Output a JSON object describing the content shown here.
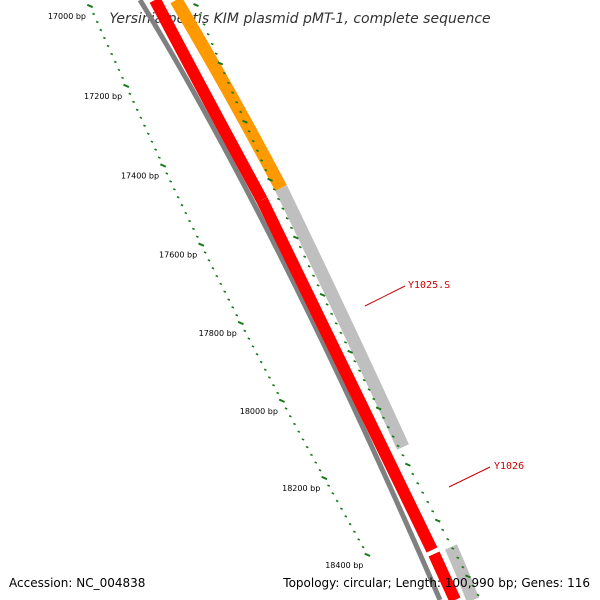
{
  "title": "Yersinia pestis KIM plasmid pMT-1, complete sequence",
  "accession": "Accession: NC_004838",
  "summary": "Topology: circular; Length: 100,990 bp; Genes: 116",
  "colors": {
    "backbone": "#808080",
    "tick": "#1a7a1a",
    "gene_forward": "#ff0000",
    "gene_orange": "#ff9900",
    "gene_gray": "#bfbfbf",
    "label": "#cc0000"
  },
  "ruler": [
    {
      "label": "17000 bp"
    },
    {
      "label": "17200 bp"
    },
    {
      "label": "17400 bp"
    },
    {
      "label": "17600 bp"
    },
    {
      "label": "17800 bp"
    },
    {
      "label": "18000 bp"
    },
    {
      "label": "18200 bp"
    },
    {
      "label": "18400 bp"
    }
  ],
  "genes": [
    {
      "label": "Y1025.S"
    },
    {
      "label": "Y1026"
    }
  ]
}
